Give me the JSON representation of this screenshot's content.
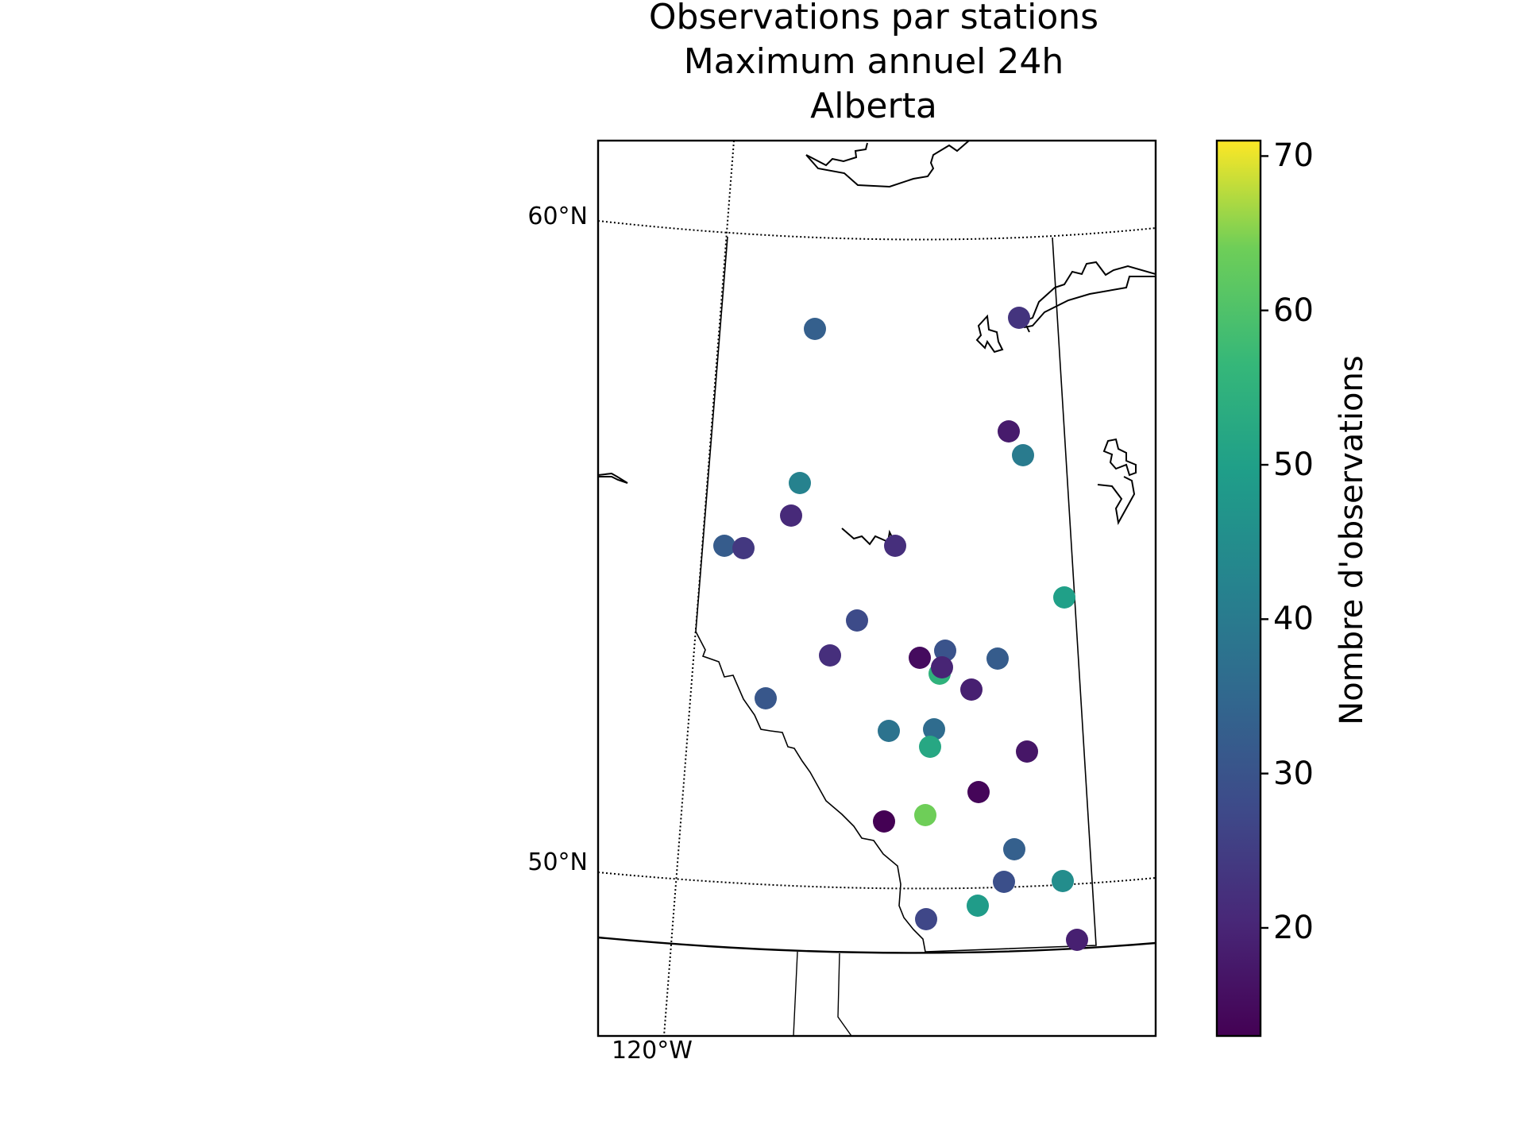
{
  "title": {
    "line1": "Observations par stations",
    "line2": "Maximum annuel 24h",
    "line3": "Alberta"
  },
  "map": {
    "lat_labels": [
      "60°N",
      "50°N"
    ],
    "lon_labels": [
      "120°W"
    ]
  },
  "colorbar": {
    "label": "Nombre d'observations",
    "ticks": [
      "70",
      "60",
      "50",
      "40",
      "30",
      "20"
    ],
    "range": [
      13,
      71
    ],
    "colormap": "viridis"
  },
  "stations": [
    {
      "value": 33
    },
    {
      "value": 23
    },
    {
      "value": 18
    },
    {
      "value": 40
    },
    {
      "value": 42
    },
    {
      "value": 21
    },
    {
      "value": 32
    },
    {
      "value": 24
    },
    {
      "value": 22
    },
    {
      "value": 50
    },
    {
      "value": 28
    },
    {
      "value": 22
    },
    {
      "value": 15
    },
    {
      "value": 30
    },
    {
      "value": 55
    },
    {
      "value": 20
    },
    {
      "value": 32
    },
    {
      "value": 19
    },
    {
      "value": 31
    },
    {
      "value": 38
    },
    {
      "value": 36
    },
    {
      "value": 52
    },
    {
      "value": 17
    },
    {
      "value": 14
    },
    {
      "value": 13
    },
    {
      "value": 64
    },
    {
      "value": 33
    },
    {
      "value": 29
    },
    {
      "value": 45
    },
    {
      "value": 49
    },
    {
      "value": 27
    },
    {
      "value": 19
    }
  ]
}
